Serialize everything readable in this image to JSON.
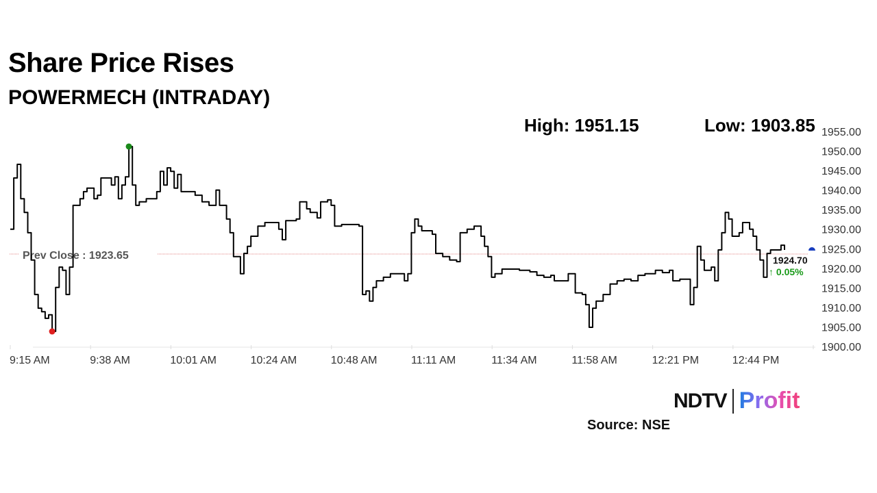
{
  "header": {
    "title": "Share Price Rises",
    "subtitle": "POWERMECH (INTRADAY)"
  },
  "stats": {
    "high_label": "High: 1951.15",
    "low_label": "Low: 1903.85"
  },
  "footer": {
    "logo_text": "NDTV | Profit",
    "source": "Source: NSE"
  },
  "chart_data": {
    "type": "line",
    "title": "Share Price Rises",
    "subtitle": "POWERMECH (INTRADAY)",
    "xlabel": "",
    "ylabel": "",
    "ylim": [
      1900,
      1955
    ],
    "y_ticks": [
      "1900.00",
      "1905.00",
      "1910.00",
      "1915.00",
      "1920.00",
      "1925.00",
      "1930.00",
      "1935.00",
      "1940.00",
      "1945.00",
      "1950.00",
      "1955.00"
    ],
    "x_ticks": [
      "9:15 AM",
      "9:38 AM",
      "10:01 AM",
      "10:24 AM",
      "10:48 AM",
      "11:11 AM",
      "11:34 AM",
      "11:58 AM",
      "12:21 PM",
      "12:44 PM"
    ],
    "grid": false,
    "high": 1951.15,
    "low": 1903.85,
    "prev_close": {
      "label": "Prev Close : 1923.65",
      "value": 1923.65
    },
    "current": {
      "value_label": "1924.70",
      "change_label": "↑ 0.05%",
      "value": 1924.7
    },
    "colors": {
      "line": "#000000",
      "high_marker": "#1a8a1a",
      "low_marker": "#e02020",
      "prev_close_line": "#e08080",
      "current_marker": "#1a3fbf",
      "change": "#1a9a1a"
    },
    "series": [
      {
        "points": [
          [
            "9:15",
            1930.0
          ],
          [
            "9:16",
            1943.1
          ],
          [
            "9:17",
            1946.6
          ],
          [
            "9:18",
            1937.8
          ],
          [
            "9:19",
            1934.3
          ],
          [
            "9:20",
            1929.1
          ],
          [
            "9:21",
            1922.1
          ],
          [
            "9:22",
            1913.3
          ],
          [
            "9:23",
            1909.8
          ],
          [
            "9:24",
            1908.9
          ],
          [
            "9:25",
            1907.2
          ],
          [
            "9:26",
            1908.1
          ],
          [
            "9:27",
            1903.85
          ],
          [
            "9:28",
            1915.1
          ],
          [
            "9:29",
            1920.3
          ],
          [
            "9:30",
            1919.5
          ],
          [
            "9:31",
            1913.3
          ],
          [
            "9:32",
            1920.3
          ],
          [
            "9:33",
            1936.1
          ],
          [
            "9:35",
            1937.8
          ],
          [
            "9:36",
            1939.6
          ],
          [
            "9:37",
            1940.5
          ],
          [
            "9:38",
            1940.5
          ],
          [
            "9:39",
            1937.8
          ],
          [
            "9:40",
            1938.7
          ],
          [
            "9:41",
            1943.1
          ],
          [
            "9:43",
            1943.1
          ],
          [
            "9:44",
            1941.3
          ],
          [
            "9:45",
            1943.4
          ],
          [
            "9:46",
            1937.8
          ],
          [
            "9:47",
            1941.3
          ],
          [
            "9:48",
            1943.4
          ],
          [
            "9:49",
            1951.15
          ],
          [
            "9:50",
            1941.3
          ],
          [
            "9:51",
            1936.1
          ],
          [
            "9:52",
            1937.0
          ],
          [
            "9:54",
            1937.8
          ],
          [
            "9:56",
            1937.8
          ],
          [
            "9:57",
            1939.6
          ],
          [
            "9:58",
            1944.8
          ],
          [
            "9:59",
            1941.3
          ],
          [
            "10:00",
            1945.7
          ],
          [
            "10:01",
            1944.8
          ],
          [
            "10:02",
            1940.5
          ],
          [
            "10:03",
            1944.0
          ],
          [
            "10:04",
            1939.6
          ],
          [
            "10:06",
            1939.6
          ],
          [
            "10:08",
            1938.7
          ],
          [
            "10:10",
            1937.0
          ],
          [
            "10:12",
            1936.1
          ],
          [
            "10:14",
            1940.0
          ],
          [
            "10:15",
            1936.1
          ],
          [
            "10:17",
            1932.6
          ],
          [
            "10:18",
            1929.1
          ],
          [
            "10:19",
            1923.0
          ],
          [
            "10:20",
            1923.0
          ],
          [
            "10:21",
            1918.6
          ],
          [
            "10:22",
            1923.8
          ],
          [
            "10:23",
            1925.6
          ],
          [
            "10:24",
            1928.2
          ],
          [
            "10:26",
            1930.8
          ],
          [
            "10:28",
            1931.7
          ],
          [
            "10:30",
            1931.7
          ],
          [
            "10:32",
            1930.0
          ],
          [
            "10:33",
            1927.3
          ],
          [
            "10:34",
            1932.2
          ],
          [
            "10:37",
            1932.6
          ],
          [
            "10:38",
            1937.0
          ],
          [
            "10:40",
            1935.2
          ],
          [
            "10:41",
            1934.3
          ],
          [
            "10:43",
            1932.9
          ],
          [
            "10:44",
            1937.0
          ],
          [
            "10:46",
            1937.5
          ],
          [
            "10:47",
            1936.1
          ],
          [
            "10:48",
            1930.8
          ],
          [
            "10:50",
            1931.2
          ],
          [
            "10:52",
            1931.2
          ],
          [
            "10:55",
            1930.8
          ],
          [
            "10:56",
            1913.3
          ],
          [
            "10:57",
            1914.2
          ],
          [
            "10:58",
            1911.6
          ],
          [
            "10:59",
            1915.1
          ],
          [
            "11:00",
            1916.8
          ],
          [
            "11:02",
            1917.7
          ],
          [
            "11:04",
            1918.6
          ],
          [
            "11:06",
            1918.6
          ],
          [
            "11:08",
            1916.8
          ],
          [
            "11:09",
            1918.6
          ],
          [
            "11:10",
            1929.1
          ],
          [
            "11:11",
            1932.6
          ],
          [
            "11:12",
            1930.8
          ],
          [
            "11:13",
            1929.6
          ],
          [
            "11:16",
            1928.7
          ],
          [
            "11:17",
            1923.8
          ],
          [
            "11:19",
            1923.0
          ],
          [
            "11:21",
            1922.1
          ],
          [
            "11:23",
            1921.7
          ],
          [
            "11:24",
            1929.1
          ],
          [
            "11:26",
            1930.0
          ],
          [
            "11:28",
            1930.8
          ],
          [
            "11:30",
            1928.2
          ],
          [
            "11:31",
            1925.6
          ],
          [
            "11:32",
            1923.0
          ],
          [
            "11:33",
            1917.7
          ],
          [
            "11:34",
            1918.6
          ],
          [
            "11:36",
            1919.8
          ],
          [
            "11:38",
            1919.8
          ],
          [
            "11:41",
            1919.5
          ],
          [
            "11:44",
            1919.1
          ],
          [
            "11:46",
            1918.2
          ],
          [
            "11:48",
            1917.7
          ],
          [
            "11:50",
            1918.2
          ],
          [
            "11:51",
            1916.8
          ],
          [
            "11:53",
            1916.8
          ],
          [
            "11:55",
            1918.6
          ],
          [
            "11:56",
            1918.6
          ],
          [
            "11:57",
            1913.7
          ],
          [
            "11:59",
            1913.3
          ],
          [
            "12:00",
            1910.7
          ],
          [
            "12:01",
            1904.9
          ],
          [
            "12:02",
            1909.8
          ],
          [
            "12:03",
            1911.6
          ],
          [
            "12:05",
            1913.3
          ],
          [
            "12:07",
            1916.0
          ],
          [
            "12:09",
            1916.8
          ],
          [
            "12:11",
            1917.2
          ],
          [
            "12:13",
            1916.8
          ],
          [
            "12:15",
            1918.2
          ],
          [
            "12:17",
            1918.6
          ],
          [
            "12:20",
            1919.5
          ],
          [
            "12:22",
            1918.9
          ],
          [
            "12:24",
            1919.5
          ],
          [
            "12:25",
            1916.8
          ],
          [
            "12:27",
            1917.2
          ],
          [
            "12:29",
            1917.2
          ],
          [
            "12:30",
            1910.7
          ],
          [
            "12:31",
            1915.1
          ],
          [
            "12:32",
            1925.6
          ],
          [
            "12:33",
            1922.1
          ],
          [
            "12:34",
            1919.5
          ],
          [
            "12:36",
            1920.3
          ],
          [
            "12:37",
            1916.8
          ],
          [
            "12:38",
            1924.7
          ],
          [
            "12:39",
            1929.1
          ],
          [
            "12:40",
            1934.3
          ],
          [
            "12:41",
            1932.6
          ],
          [
            "12:42",
            1928.2
          ],
          [
            "12:44",
            1929.1
          ],
          [
            "12:45",
            1931.7
          ],
          [
            "12:47",
            1930.0
          ],
          [
            "12:48",
            1928.2
          ],
          [
            "12:49",
            1924.7
          ],
          [
            "12:50",
            1922.1
          ],
          [
            "12:51",
            1917.7
          ],
          [
            "12:52",
            1923.8
          ],
          [
            "12:53",
            1924.7
          ],
          [
            "12:54",
            1924.7
          ],
          [
            "12:56",
            1925.9
          ],
          [
            "12:57",
            1924.7
          ]
        ]
      }
    ]
  }
}
